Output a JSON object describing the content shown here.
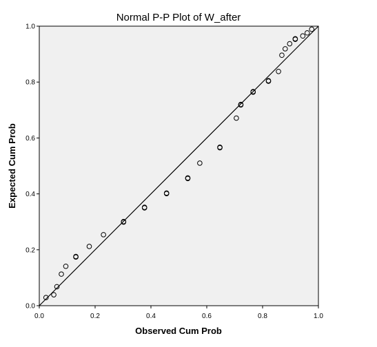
{
  "chart_data": {
    "type": "scatter",
    "title": "Normal P-P Plot of W_after",
    "xlabel": "Observed Cum Prob",
    "ylabel": "Expected Cum Prob",
    "xlim": [
      0,
      1
    ],
    "ylim": [
      0,
      1
    ],
    "x_ticks": [
      "0.0",
      "0.2",
      "0.4",
      "0.6",
      "0.8",
      "1.0"
    ],
    "y_ticks": [
      "0.0",
      "0.2",
      "0.4",
      "0.6",
      "0.8",
      "1.0"
    ],
    "grid": false,
    "legend": "none",
    "reference_line": [
      [
        0,
        0
      ],
      [
        1,
        1
      ]
    ],
    "colors": {
      "plot_background": "#f0f0f0",
      "marker": "#000000",
      "line": "#000000"
    },
    "points": [
      {
        "x": 0.024,
        "y": 0.029
      },
      {
        "x": 0.052,
        "y": 0.039
      },
      {
        "x": 0.063,
        "y": 0.068
      },
      {
        "x": 0.079,
        "y": 0.113
      },
      {
        "x": 0.095,
        "y": 0.141
      },
      {
        "x": 0.131,
        "y": 0.174
      },
      {
        "x": 0.131,
        "y": 0.176
      },
      {
        "x": 0.179,
        "y": 0.212
      },
      {
        "x": 0.23,
        "y": 0.254
      },
      {
        "x": 0.302,
        "y": 0.299
      },
      {
        "x": 0.302,
        "y": 0.301
      },
      {
        "x": 0.377,
        "y": 0.35
      },
      {
        "x": 0.377,
        "y": 0.352
      },
      {
        "x": 0.456,
        "y": 0.401
      },
      {
        "x": 0.456,
        "y": 0.403
      },
      {
        "x": 0.532,
        "y": 0.455
      },
      {
        "x": 0.532,
        "y": 0.457
      },
      {
        "x": 0.575,
        "y": 0.51
      },
      {
        "x": 0.647,
        "y": 0.565
      },
      {
        "x": 0.647,
        "y": 0.567
      },
      {
        "x": 0.706,
        "y": 0.671
      },
      {
        "x": 0.722,
        "y": 0.718
      },
      {
        "x": 0.722,
        "y": 0.72
      },
      {
        "x": 0.766,
        "y": 0.764
      },
      {
        "x": 0.766,
        "y": 0.766
      },
      {
        "x": 0.821,
        "y": 0.803
      },
      {
        "x": 0.821,
        "y": 0.805
      },
      {
        "x": 0.857,
        "y": 0.838
      },
      {
        "x": 0.869,
        "y": 0.896
      },
      {
        "x": 0.881,
        "y": 0.919
      },
      {
        "x": 0.897,
        "y": 0.937
      },
      {
        "x": 0.917,
        "y": 0.953
      },
      {
        "x": 0.917,
        "y": 0.955
      },
      {
        "x": 0.944,
        "y": 0.965
      },
      {
        "x": 0.96,
        "y": 0.976
      },
      {
        "x": 0.976,
        "y": 0.989
      }
    ]
  }
}
